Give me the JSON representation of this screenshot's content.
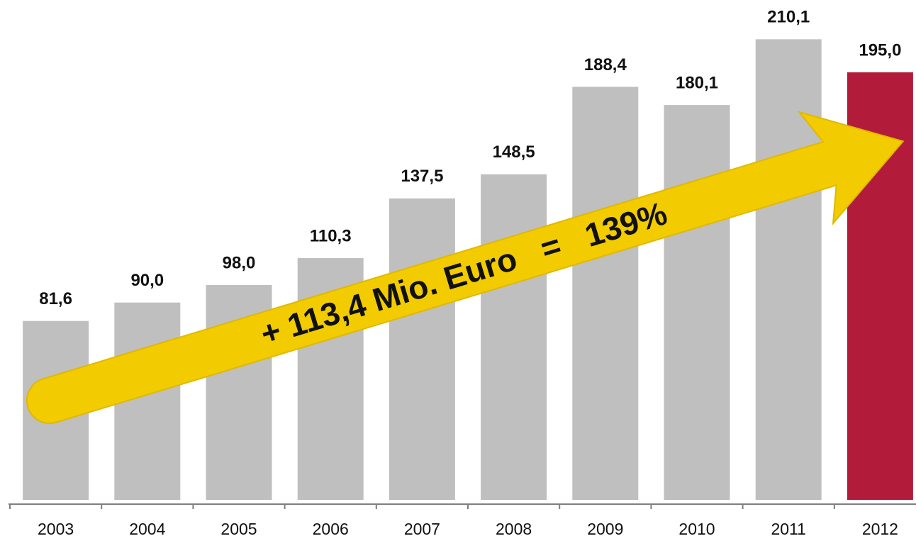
{
  "chart_data": {
    "type": "bar",
    "categories": [
      "2003",
      "2004",
      "2005",
      "2006",
      "2007",
      "2008",
      "2009",
      "2010",
      "2011",
      "2012"
    ],
    "values": [
      81.6,
      90.0,
      98.0,
      110.3,
      137.5,
      148.5,
      188.4,
      180.1,
      210.1,
      195.0
    ],
    "value_labels": [
      "81,6",
      "90,0",
      "98,0",
      "110,3",
      "137,5",
      "148,5",
      "188,4",
      "180,1",
      "210,1",
      "195,0"
    ],
    "colors": [
      "#bfbfbf",
      "#bfbfbf",
      "#bfbfbf",
      "#bfbfbf",
      "#bfbfbf",
      "#bfbfbf",
      "#bfbfbf",
      "#bfbfbf",
      "#bfbfbf",
      "#b31b3b"
    ],
    "ylim": [
      0,
      228
    ],
    "annotation": "+ 113,4 Mio. Euro   =   139%"
  }
}
